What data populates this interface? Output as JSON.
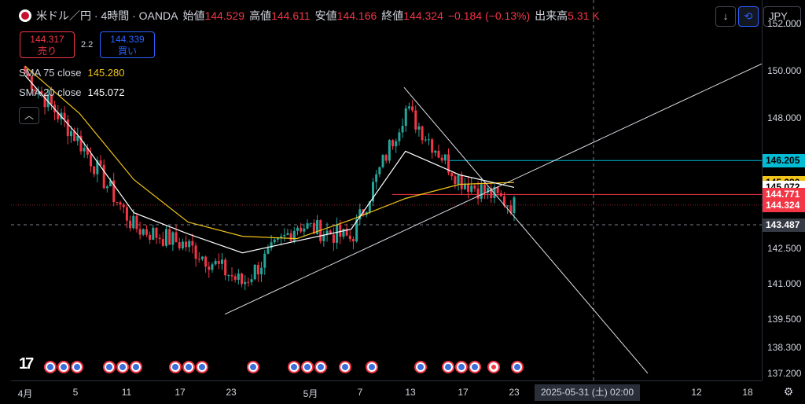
{
  "header": {
    "title": "米ドル／円 · 4時間 · OANDA",
    "open_label": "始値",
    "open": "144.529",
    "high_label": "高値",
    "high": "144.611",
    "low_label": "安値",
    "low": "144.166",
    "close_label": "終値",
    "close": "144.324",
    "change": "−0.184 (−0.13%)",
    "volume_label": "出来高",
    "volume": "5.31 K"
  },
  "trade": {
    "sell_price": "144.317",
    "sell_label": "売り",
    "spread": "2.2",
    "buy_price": "144.339",
    "buy_label": "買い"
  },
  "indicators": {
    "sma75_label": "SMA 75 close",
    "sma75_value": "145.280",
    "sma20_label": "SMA 20 close",
    "sma20_value": "145.072"
  },
  "toolbar": {
    "currency": "JPY",
    "down_icon": "↓",
    "sync_icon": "⟲"
  },
  "colors": {
    "up": "#26a69a",
    "down": "#f23645",
    "sma75": "#f0c419",
    "sma20": "#ffffff",
    "accent": "#2962ff"
  },
  "price_axis": {
    "ticks": [
      "152.000",
      "150.000",
      "148.000",
      "145.072",
      "142.500",
      "141.000",
      "139.500",
      "138.300",
      "137.200"
    ],
    "labels": [
      {
        "text": "146.205",
        "bg": "#00bcd4",
        "fg": "#000000"
      },
      {
        "text": "145.280",
        "bg": "#f0c419",
        "fg": "#000000"
      },
      {
        "text": "145.072",
        "bg": "#ffffff",
        "fg": "#000000"
      },
      {
        "text": "144.771",
        "bg": "#f23645",
        "fg": "#ffffff"
      },
      {
        "text": "144.324",
        "bg": "#f23645",
        "fg": "#ffffff"
      },
      {
        "text": "143.487",
        "bg": "#363a45",
        "fg": "#ffffff"
      }
    ]
  },
  "time_axis": {
    "ticks": [
      "4月",
      "5",
      "11",
      "17",
      "23",
      "5月",
      "7",
      "13",
      "17",
      "23",
      "12",
      "18"
    ],
    "crosshair": "2025-05-31 (土)   02:00"
  },
  "chart_data": {
    "type": "candlestick",
    "symbol": "USDJPY",
    "interval": "4時間",
    "ylim": [
      136.9,
      153.0
    ],
    "x": [
      "4月",
      "5",
      "11",
      "17",
      "23",
      "5月",
      "7",
      "13",
      "17",
      "23"
    ],
    "close": [
      149.9,
      147.0,
      143.4,
      142.6,
      141.0,
      143.5,
      142.9,
      148.4,
      145.4,
      144.3
    ],
    "sma75": [
      150.2,
      148.2,
      145.4,
      143.6,
      143.0,
      142.9,
      143.7,
      144.6,
      145.2,
      145.28
    ],
    "sma20": [
      149.8,
      147.2,
      144.0,
      143.1,
      142.3,
      142.8,
      143.3,
      146.6,
      145.6,
      145.07
    ],
    "levels": [
      146.205,
      145.28,
      145.072,
      144.771,
      144.324,
      143.487
    ]
  }
}
